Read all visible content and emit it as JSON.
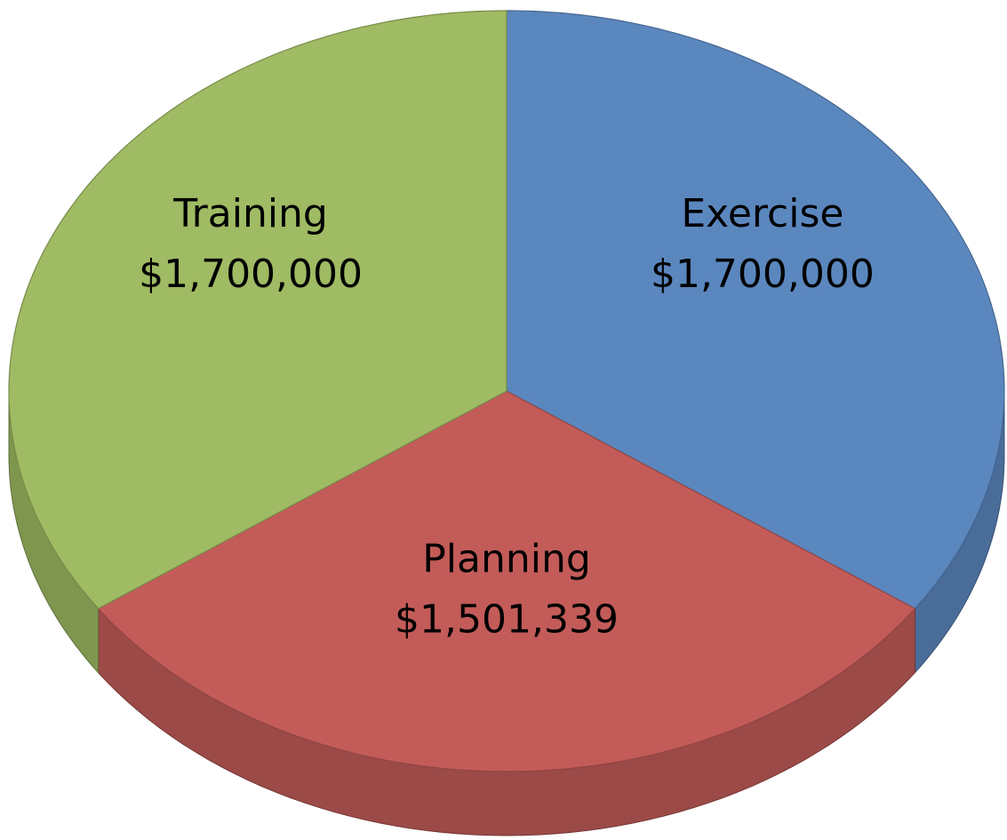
{
  "chart_data": {
    "type": "pie",
    "3d": true,
    "categories": [
      "Exercise",
      "Planning",
      "Training"
    ],
    "values": [
      1700000,
      1501339,
      1700000
    ],
    "value_labels": [
      "$1,700,000",
      "$1,501,339",
      "$1,700,000"
    ],
    "colors": [
      "#5b87bf",
      "#c35c59",
      "#9fbb63"
    ]
  }
}
